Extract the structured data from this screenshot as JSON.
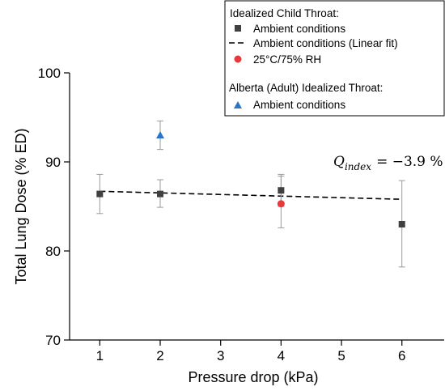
{
  "chart_data": {
    "type": "scatter",
    "xlabel": "Pressure drop (kPa)",
    "ylabel": "Total Lung Dose (% ED)",
    "xlim": [
      0.5,
      6.7
    ],
    "ylim": [
      70,
      100
    ],
    "xticks": [
      1,
      2,
      3,
      4,
      5,
      6
    ],
    "yticks": [
      70,
      80,
      90,
      100
    ],
    "series": [
      {
        "name": "Ambient conditions",
        "group": "Idealized Child Throat:",
        "marker": "square",
        "color": "#404040",
        "x": [
          1,
          2,
          4,
          6
        ],
        "y": [
          86.4,
          86.4,
          86.8,
          83.0
        ],
        "err_low": [
          84.2,
          84.9,
          85.0,
          78.2
        ],
        "err_high": [
          88.6,
          88.0,
          88.6,
          87.9
        ]
      },
      {
        "name": "Ambient conditions (Linear fit)",
        "group": "Idealized Child Throat:",
        "marker": "dashed-line",
        "color": "#000000",
        "x": [
          1,
          6
        ],
        "y": [
          86.7,
          85.8
        ]
      },
      {
        "name": "25°C/75% RH",
        "group": "Idealized Child Throat:",
        "marker": "circle",
        "color": "#e8393c",
        "x": [
          4
        ],
        "y": [
          85.3
        ],
        "err_low": [
          82.6
        ],
        "err_high": [
          88.4
        ]
      },
      {
        "name": "Ambient conditions",
        "group": "Alberta (Adult) Idealized Throat:",
        "marker": "triangle",
        "color": "#2a74c9",
        "x": [
          2
        ],
        "y": [
          93.0
        ],
        "err_low": [
          91.4
        ],
        "err_high": [
          94.6
        ]
      }
    ],
    "legend": {
      "placement": "top-right",
      "group1_title": "Idealized Child Throat:",
      "group1_items": [
        "Ambient conditions",
        "Ambient conditions (Linear fit)",
        "25°C/75% RH"
      ],
      "group2_title": "Alberta (Adult) Idealized Throat:",
      "group2_items": [
        "Ambient conditions"
      ]
    },
    "annotation": {
      "q_symbol": "Q",
      "q_subscript": "index",
      "value_text": "= −3.9 %"
    }
  }
}
